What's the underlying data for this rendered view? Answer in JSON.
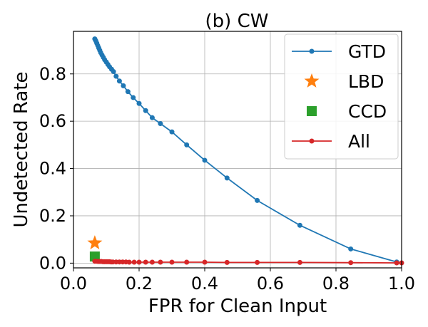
{
  "chart_data": {
    "type": "line",
    "title": "(b) CW",
    "xlabel": "FPR for Clean Input",
    "ylabel": "Undetected Rate",
    "xlim": [
      0.0,
      1.0
    ],
    "ylim": [
      -0.02,
      0.98
    ],
    "xticks": [
      "0.0",
      "0.2",
      "0.4",
      "0.6",
      "0.8",
      "1.0"
    ],
    "yticks": [
      "0.0",
      "0.2",
      "0.4",
      "0.6",
      "0.8"
    ],
    "grid": true,
    "legend_position": "top-right",
    "series": [
      {
        "name": "GTD",
        "kind": "line-marker",
        "color": "#1f77b4",
        "x": [
          0.065,
          0.068,
          0.071,
          0.074,
          0.077,
          0.08,
          0.083,
          0.087,
          0.091,
          0.095,
          0.1,
          0.105,
          0.11,
          0.116,
          0.122,
          0.13,
          0.14,
          0.152,
          0.166,
          0.182,
          0.2,
          0.22,
          0.24,
          0.265,
          0.3,
          0.345,
          0.4,
          0.468,
          0.56,
          0.69,
          0.845,
          0.985
        ],
        "y": [
          0.948,
          0.94,
          0.93,
          0.92,
          0.91,
          0.9,
          0.89,
          0.88,
          0.87,
          0.86,
          0.85,
          0.84,
          0.83,
          0.82,
          0.81,
          0.79,
          0.77,
          0.75,
          0.725,
          0.7,
          0.675,
          0.645,
          0.615,
          0.59,
          0.555,
          0.5,
          0.435,
          0.36,
          0.265,
          0.16,
          0.06,
          0.005
        ]
      },
      {
        "name": "LBD",
        "kind": "star",
        "color": "#ff7f0e",
        "x": [
          0.065
        ],
        "y": [
          0.085
        ]
      },
      {
        "name": "CCD",
        "kind": "square",
        "color": "#2ca02c",
        "x": [
          0.065
        ],
        "y": [
          0.028
        ]
      },
      {
        "name": "All",
        "kind": "line-marker",
        "color": "#d62728",
        "x": [
          0.065,
          0.07,
          0.075,
          0.08,
          0.085,
          0.09,
          0.095,
          0.1,
          0.105,
          0.11,
          0.115,
          0.12,
          0.13,
          0.14,
          0.15,
          0.16,
          0.17,
          0.185,
          0.2,
          0.22,
          0.24,
          0.265,
          0.3,
          0.345,
          0.4,
          0.468,
          0.56,
          0.69,
          0.845,
          0.985,
          1.0
        ],
        "y": [
          0.008,
          0.008,
          0.007,
          0.007,
          0.007,
          0.006,
          0.006,
          0.006,
          0.006,
          0.006,
          0.005,
          0.005,
          0.005,
          0.005,
          0.005,
          0.005,
          0.004,
          0.004,
          0.004,
          0.004,
          0.004,
          0.004,
          0.004,
          0.004,
          0.004,
          0.003,
          0.003,
          0.003,
          0.002,
          0.001,
          0.001
        ]
      }
    ]
  }
}
